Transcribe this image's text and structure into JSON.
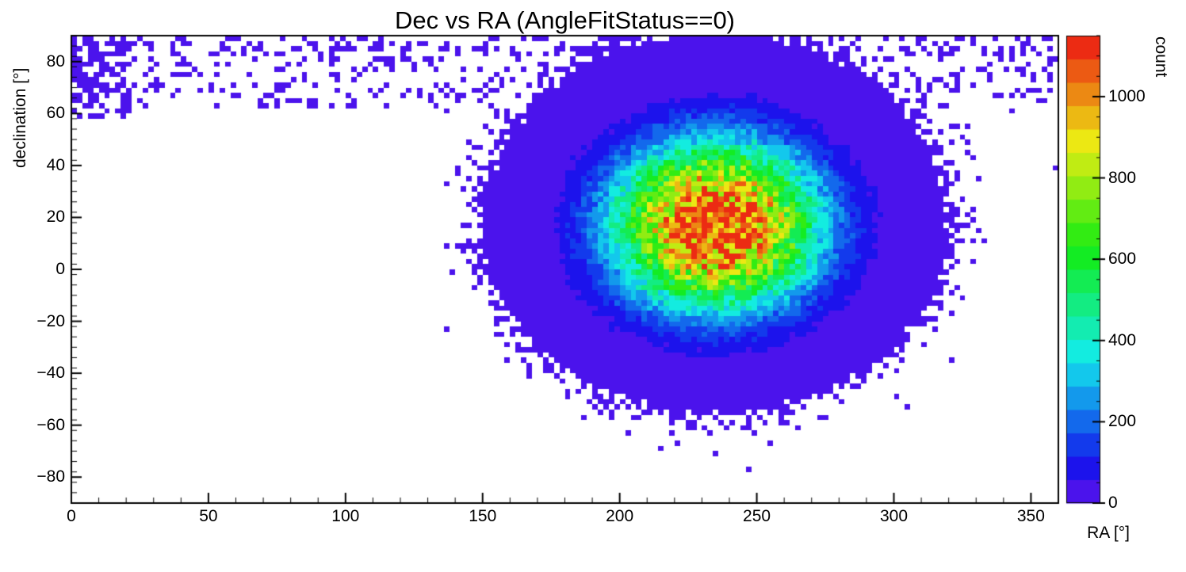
{
  "chart_data": {
    "type": "heatmap",
    "title": "Dec vs RA (AngleFitStatus==0)",
    "xlabel": "RA [°]",
    "ylabel": "declination [°]",
    "zlabel": "count",
    "xlim": [
      0,
      360
    ],
    "ylim": [
      -90,
      90
    ],
    "zlim": [
      0,
      1150
    ],
    "x_ticks": [
      0,
      50,
      100,
      150,
      200,
      250,
      300,
      350
    ],
    "x_minor_step": 10,
    "y_ticks": [
      -80,
      -60,
      -40,
      -20,
      0,
      20,
      40,
      60,
      80
    ],
    "y_minor_step": 4,
    "z_ticks": [
      0,
      200,
      400,
      600,
      800,
      1000
    ],
    "z_minor_step": 50,
    "bin_size_deg": 2,
    "grid": false,
    "legend_position": "right-palette",
    "palette": {
      "style": "rainbow-quantized",
      "levels": 20,
      "hue_max": 262,
      "saturation": 85,
      "lightness": 50,
      "low_hex": "#6a13ec",
      "high_hex": "#ec1313"
    },
    "distribution": {
      "model": "2d-gaussian-blob",
      "center_ra": 235,
      "center_dec": 17,
      "sigma_ra": 27,
      "sigma_dec": 23,
      "peak_count": 1150,
      "falloff_power": 1.15
    },
    "noise": {
      "seed": 20240613,
      "top_band": {
        "dec_min": 62,
        "p0": 0.14,
        "p1": 0.12
      },
      "left_corner": {
        "ra_max": 22,
        "dec_min": 58,
        "p": 0.38
      },
      "right_edge": {
        "ra_min": 342,
        "dec_min": 32,
        "p": 0.07
      }
    }
  }
}
